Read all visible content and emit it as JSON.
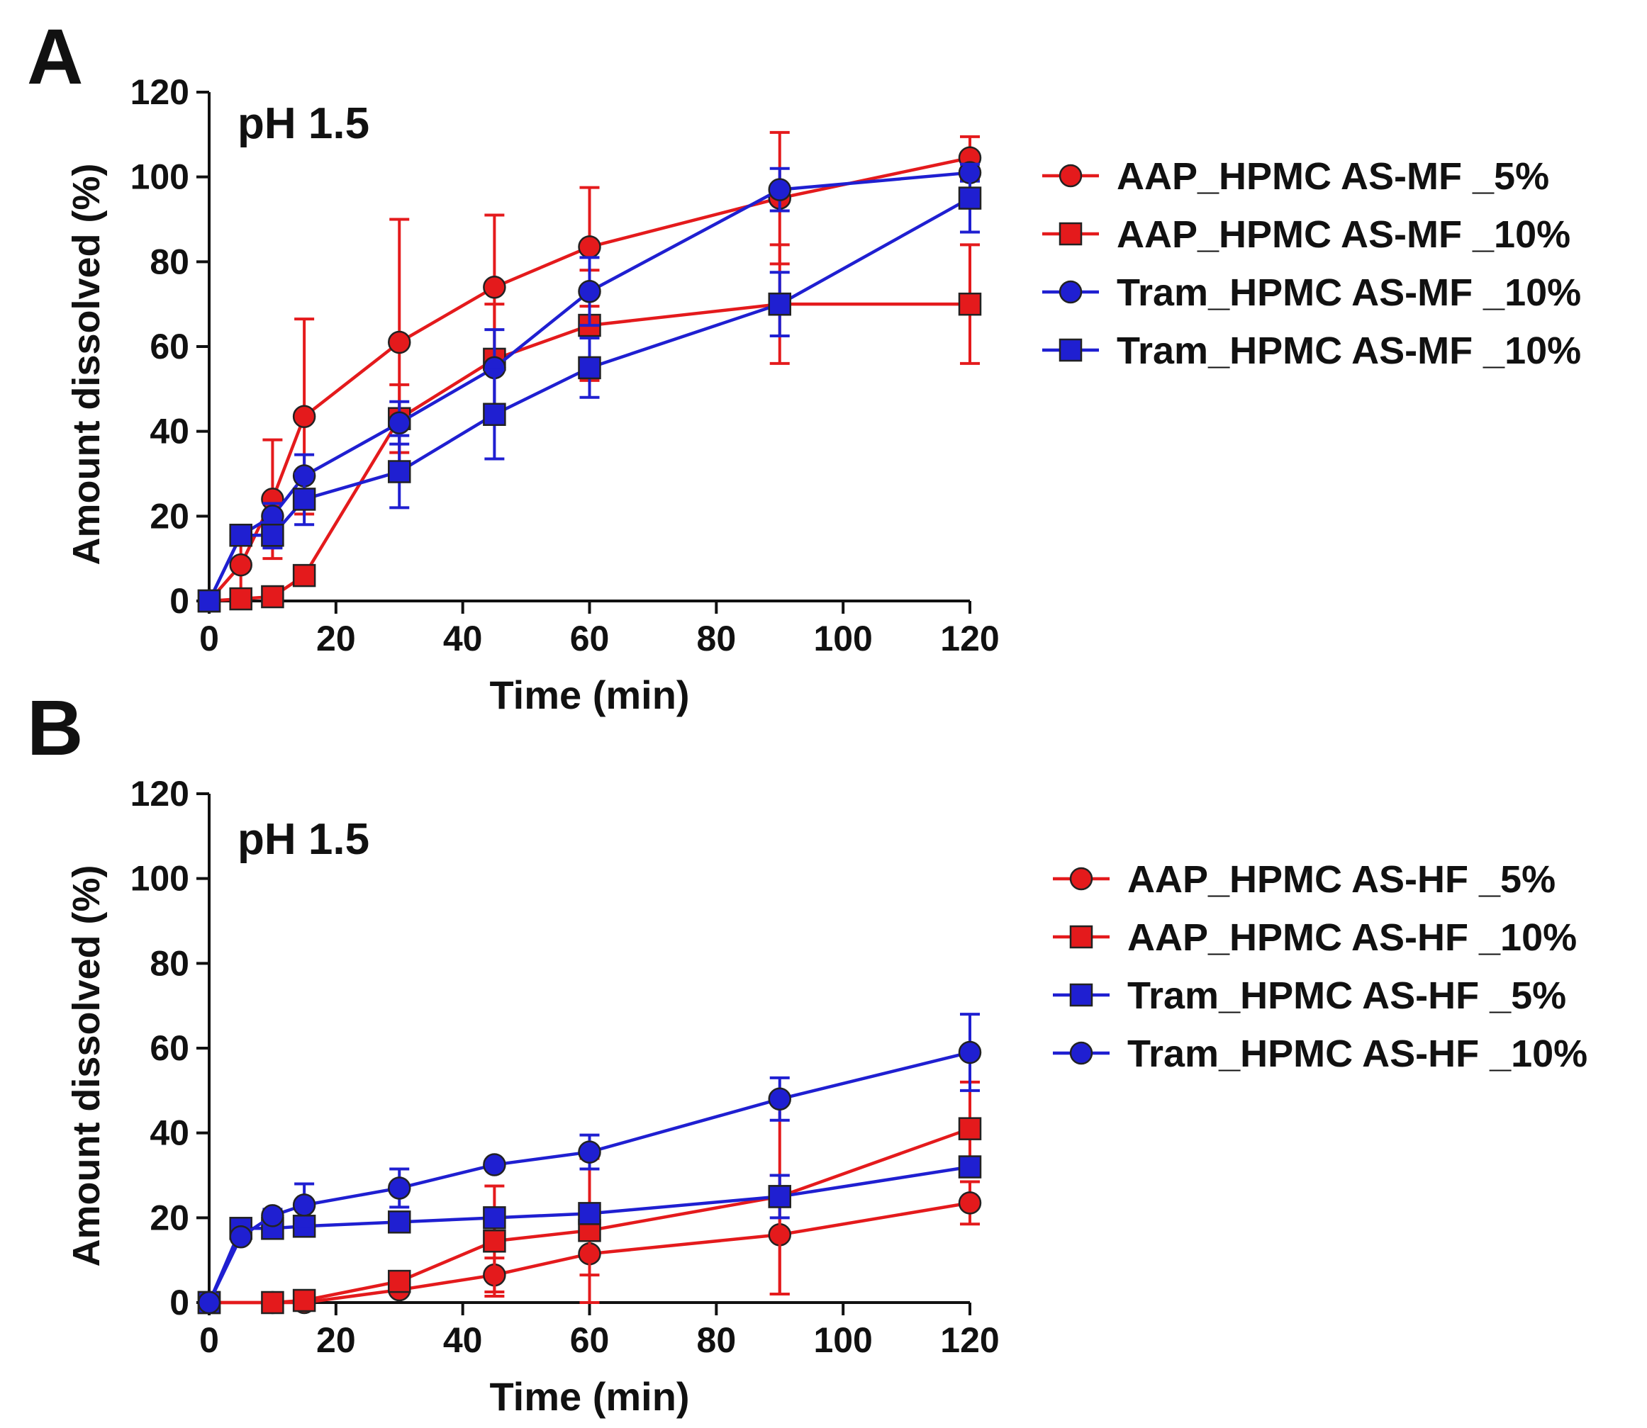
{
  "chart_data": [
    {
      "type": "line",
      "panel_label": "A",
      "annotation": "pH 1.5",
      "title": "",
      "xlabel": "Time (min)",
      "ylabel": "Amount dissolved (%)",
      "xlim": [
        0,
        120
      ],
      "ylim": [
        0,
        120
      ],
      "xticks": [
        0,
        20,
        40,
        60,
        80,
        100,
        120
      ],
      "yticks": [
        0,
        20,
        40,
        60,
        80,
        100,
        120
      ],
      "grid": false,
      "legend_position": "right",
      "series": [
        {
          "name": "AAP_HPMC AS-MF _5%",
          "color": "#e41a1c",
          "marker": "circle",
          "x": [
            0,
            5,
            10,
            15,
            30,
            45,
            60,
            90,
            120
          ],
          "y": [
            0,
            8.5,
            24,
            43.5,
            61,
            74,
            83.5,
            95,
            104.5
          ],
          "error": [
            0,
            6,
            14,
            23,
            29,
            17,
            14,
            15.5,
            5
          ]
        },
        {
          "name": "AAP_HPMC AS-MF _10%",
          "color": "#e41a1c",
          "marker": "square",
          "x": [
            0,
            5,
            10,
            15,
            30,
            45,
            60,
            90,
            120
          ],
          "y": [
            0,
            0.5,
            1,
            6,
            43,
            57,
            65,
            70,
            70
          ],
          "error": [
            0,
            0.5,
            1,
            1.5,
            8,
            13,
            13,
            14,
            14
          ]
        },
        {
          "name": "Tram_HPMC AS-MF _10%",
          "color": "#1f1fd1",
          "marker": "circle",
          "x": [
            0,
            5,
            10,
            15,
            30,
            45,
            60,
            90,
            120
          ],
          "y": [
            0,
            15.5,
            20,
            29.5,
            42,
            55,
            73,
            97,
            101
          ],
          "error": [
            0,
            1.5,
            3,
            5,
            5,
            9,
            8,
            5,
            2
          ]
        },
        {
          "name": "Tram_HPMC AS-MF _10%",
          "color": "#1f1fd1",
          "marker": "square",
          "x": [
            0,
            5,
            10,
            15,
            30,
            45,
            60,
            90,
            120
          ],
          "y": [
            0,
            15.5,
            15.5,
            24,
            30.5,
            44,
            55,
            70,
            95
          ],
          "error": [
            0,
            1.5,
            3,
            6,
            8.5,
            10.5,
            7,
            7.5,
            8
          ]
        }
      ]
    },
    {
      "type": "line",
      "panel_label": "B",
      "annotation": "pH 1.5",
      "title": "",
      "xlabel": "Time (min)",
      "ylabel": "Amount dissolved (%)",
      "xlim": [
        0,
        120
      ],
      "ylim": [
        0,
        120
      ],
      "xticks": [
        0,
        20,
        40,
        60,
        80,
        100,
        120
      ],
      "yticks": [
        0,
        20,
        40,
        60,
        80,
        100,
        120
      ],
      "grid": false,
      "legend_position": "right",
      "series": [
        {
          "name": "AAP_HPMC AS-HF _5%",
          "color": "#e41a1c",
          "marker": "circle",
          "x": [
            0,
            10,
            15,
            30,
            45,
            60,
            90,
            120
          ],
          "y": [
            0,
            0,
            0,
            3,
            6.5,
            11.5,
            16,
            23.5
          ],
          "error": [
            0,
            0,
            0,
            1,
            4,
            5,
            14,
            5
          ]
        },
        {
          "name": "AAP_HPMC AS-HF _10%",
          "color": "#e41a1c",
          "marker": "square",
          "x": [
            0,
            10,
            15,
            30,
            45,
            60,
            90,
            120
          ],
          "y": [
            0,
            0,
            0.5,
            5,
            14.5,
            17,
            25,
            41
          ],
          "error": [
            0,
            0,
            0.5,
            1,
            13,
            17,
            23,
            11
          ]
        },
        {
          "name": "Tram_HPMC AS-HF _5%",
          "color": "#1f1fd1",
          "marker": "square",
          "x": [
            0,
            5,
            10,
            15,
            30,
            45,
            60,
            90,
            120
          ],
          "y": [
            0,
            17.5,
            17.5,
            18,
            19,
            20,
            21,
            25,
            32
          ],
          "error": [
            0,
            1,
            1,
            1,
            1,
            1,
            1,
            5,
            2
          ]
        },
        {
          "name": "Tram_HPMC AS-HF _10%",
          "color": "#1f1fd1",
          "marker": "circle",
          "x": [
            0,
            5,
            10,
            15,
            30,
            45,
            60,
            90,
            120
          ],
          "y": [
            0,
            15.5,
            20.5,
            23,
            27,
            32.5,
            35.5,
            48,
            59
          ],
          "error": [
            0,
            1,
            1.5,
            5,
            4.5,
            1,
            4,
            5,
            9
          ]
        }
      ]
    }
  ]
}
